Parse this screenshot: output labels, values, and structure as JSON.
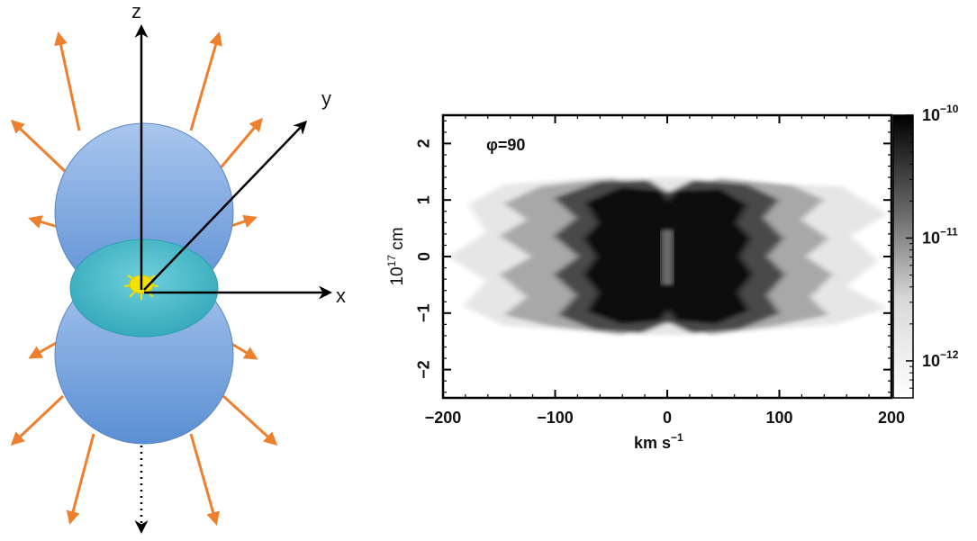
{
  "diagram": {
    "axis_labels": {
      "z": "z",
      "y": "y",
      "x": "x"
    },
    "colors": {
      "lobe": "#6f9ed9",
      "disk": "#45b8c8",
      "arrows": "#ee7f2d",
      "star": "#f4e300"
    }
  },
  "chart_data": {
    "type": "heatmap",
    "annotation": "φ=90",
    "xlabel": "km s",
    "xlabel_exp": "−1",
    "ylabel": "10",
    "ylabel_exp": "17",
    "ylabel_unit": " cm",
    "xlim": [
      -200,
      200
    ],
    "ylim": [
      -2.5,
      2.5
    ],
    "x_ticks": [
      -200,
      -100,
      0,
      100,
      200
    ],
    "x_tick_labels": [
      "−200",
      "−100",
      "0",
      "100",
      "200"
    ],
    "y_ticks": [
      -2,
      -1,
      0,
      1,
      2
    ],
    "y_tick_labels": [
      "−2",
      "−1",
      "0",
      "1",
      "2"
    ],
    "colorbar": {
      "scale": "log",
      "range": [
        5e-13,
        1e-10
      ],
      "ticks": [
        1e-10,
        1e-11,
        1e-12
      ],
      "tick_bases": [
        "10",
        "10",
        "10"
      ],
      "tick_exps": [
        "−10",
        "−11",
        "−12"
      ]
    }
  }
}
